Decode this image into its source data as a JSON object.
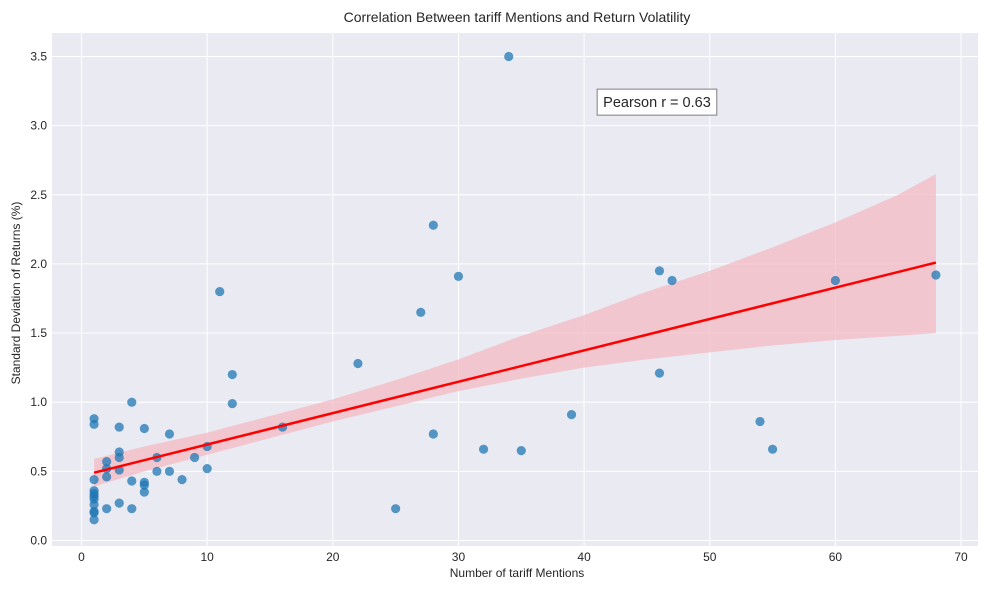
{
  "chart_data": {
    "type": "scatter",
    "title": "Correlation Between tariff Mentions and Return Volatility",
    "xlabel": "Number of tariff Mentions",
    "ylabel": "Standard Deviation of Returns (%)",
    "xlim": [
      -2.35,
      71.35
    ],
    "ylim": [
      -0.04,
      3.67
    ],
    "xticks": [
      0,
      10,
      20,
      30,
      40,
      50,
      60,
      70
    ],
    "yticks": [
      0.0,
      0.5,
      1.0,
      1.5,
      2.0,
      2.5,
      3.0,
      3.5
    ],
    "xtick_labels": [
      "0",
      "10",
      "20",
      "30",
      "40",
      "50",
      "60",
      "70"
    ],
    "ytick_labels": [
      "0.0",
      "0.5",
      "1.0",
      "1.5",
      "2.0",
      "2.5",
      "3.0",
      "3.5"
    ],
    "grid": true,
    "background_color": "#eaeaf2",
    "point_color": "#1f77b4",
    "regression_color": "#ff0000",
    "band_color": "#f4b6c0",
    "points": [
      {
        "x": 1,
        "y": 0.88
      },
      {
        "x": 1,
        "y": 0.84
      },
      {
        "x": 1,
        "y": 0.44
      },
      {
        "x": 1,
        "y": 0.36
      },
      {
        "x": 1,
        "y": 0.34
      },
      {
        "x": 1,
        "y": 0.32
      },
      {
        "x": 1,
        "y": 0.3
      },
      {
        "x": 1,
        "y": 0.26
      },
      {
        "x": 1,
        "y": 0.21
      },
      {
        "x": 1,
        "y": 0.2
      },
      {
        "x": 1,
        "y": 0.15
      },
      {
        "x": 2,
        "y": 0.57
      },
      {
        "x": 2,
        "y": 0.52
      },
      {
        "x": 2,
        "y": 0.46
      },
      {
        "x": 2,
        "y": 0.23
      },
      {
        "x": 3,
        "y": 0.82
      },
      {
        "x": 3,
        "y": 0.64
      },
      {
        "x": 3,
        "y": 0.6
      },
      {
        "x": 3,
        "y": 0.51
      },
      {
        "x": 3,
        "y": 0.27
      },
      {
        "x": 4,
        "y": 1.0
      },
      {
        "x": 4,
        "y": 0.43
      },
      {
        "x": 4,
        "y": 0.23
      },
      {
        "x": 5,
        "y": 0.81
      },
      {
        "x": 5,
        "y": 0.42
      },
      {
        "x": 5,
        "y": 0.4
      },
      {
        "x": 5,
        "y": 0.35
      },
      {
        "x": 6,
        "y": 0.6
      },
      {
        "x": 6,
        "y": 0.5
      },
      {
        "x": 7,
        "y": 0.77
      },
      {
        "x": 7,
        "y": 0.5
      },
      {
        "x": 8,
        "y": 0.44
      },
      {
        "x": 9,
        "y": 0.6
      },
      {
        "x": 10,
        "y": 0.68
      },
      {
        "x": 10,
        "y": 0.52
      },
      {
        "x": 11,
        "y": 1.8
      },
      {
        "x": 12,
        "y": 1.2
      },
      {
        "x": 12,
        "y": 0.99
      },
      {
        "x": 16,
        "y": 0.82
      },
      {
        "x": 22,
        "y": 1.28
      },
      {
        "x": 25,
        "y": 0.23
      },
      {
        "x": 27,
        "y": 1.65
      },
      {
        "x": 28,
        "y": 2.28
      },
      {
        "x": 28,
        "y": 0.77
      },
      {
        "x": 30,
        "y": 1.91
      },
      {
        "x": 32,
        "y": 0.66
      },
      {
        "x": 34,
        "y": 3.5
      },
      {
        "x": 35,
        "y": 0.65
      },
      {
        "x": 39,
        "y": 0.91
      },
      {
        "x": 46,
        "y": 1.95
      },
      {
        "x": 46,
        "y": 1.21
      },
      {
        "x": 47,
        "y": 1.88
      },
      {
        "x": 54,
        "y": 0.86
      },
      {
        "x": 55,
        "y": 0.66
      },
      {
        "x": 60,
        "y": 1.88
      },
      {
        "x": 68,
        "y": 1.92
      }
    ],
    "regression_line": {
      "x": [
        1,
        68
      ],
      "y": [
        0.49,
        2.01
      ]
    },
    "confidence_band": {
      "x": [
        1,
        5,
        10,
        15,
        20,
        25,
        30,
        35,
        40,
        45,
        50,
        55,
        60,
        65,
        68
      ],
      "lower": [
        0.39,
        0.5,
        0.62,
        0.74,
        0.86,
        0.97,
        1.08,
        1.17,
        1.25,
        1.31,
        1.36,
        1.41,
        1.45,
        1.48,
        1.5
      ],
      "upper": [
        0.59,
        0.68,
        0.78,
        0.9,
        1.02,
        1.16,
        1.31,
        1.48,
        1.63,
        1.8,
        1.95,
        2.12,
        2.3,
        2.5,
        2.65
      ]
    },
    "annotations": [
      {
        "text": "Pearson r = 0.63",
        "x": 45.8,
        "y": 3.17
      }
    ]
  }
}
